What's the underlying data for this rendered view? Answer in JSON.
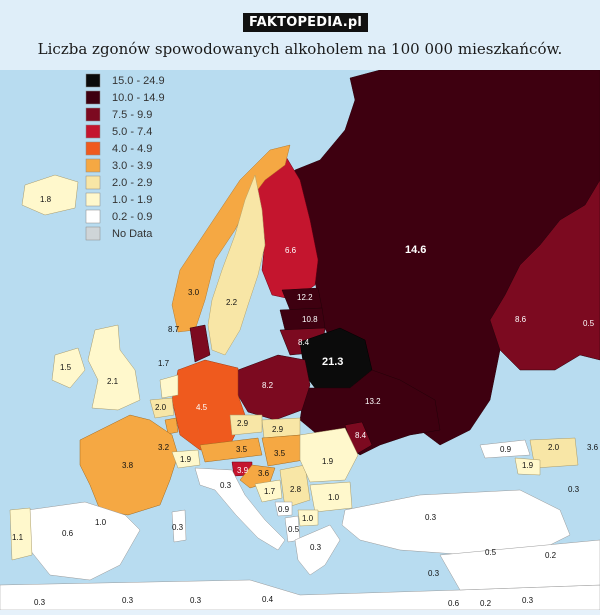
{
  "header": {
    "brand": "FAKTOPEDIA.pl",
    "title": "Liczba zgonów spowodowanych alkoholem na 100 000 mieszkańców."
  },
  "colors": {
    "sea": "#b8dcf0",
    "land_other": "#ffffff",
    "c15_249": "#0b0b0b",
    "c10_149": "#3e0010",
    "c75_99": "#7c0a20",
    "c50_74": "#c4152e",
    "c40_49": "#ef5a1e",
    "c30_39": "#f5a843",
    "c20_29": "#f8e6a6",
    "c10_19": "#fff8cc",
    "c02_09": "#ffffff",
    "nodata": "#cfd5d8"
  },
  "legend": [
    {
      "range": "15.0 - 24.9",
      "color": "#0b0b0b"
    },
    {
      "range": "10.0 - 14.9",
      "color": "#3e0010"
    },
    {
      "range": "7.5 - 9.9",
      "color": "#7c0a20"
    },
    {
      "range": "5.0 - 7.4",
      "color": "#c4152e"
    },
    {
      "range": "4.0 - 4.9",
      "color": "#ef5a1e"
    },
    {
      "range": "3.0 - 3.9",
      "color": "#f5a843"
    },
    {
      "range": "2.0 - 2.9",
      "color": "#f8e6a6"
    },
    {
      "range": "1.0 - 1.9",
      "color": "#fff8cc"
    },
    {
      "range": "0.2 - 0.9",
      "color": "#ffffff"
    },
    {
      "range": "No Data",
      "color": "#cfd5d8"
    }
  ],
  "values": {
    "iceland": "1.8",
    "norway": "3.0",
    "sweden": "2.2",
    "finland": "6.6",
    "russia": "14.6",
    "kazakhstan": "8.6",
    "east_edge": "0.5",
    "estonia": "12.2",
    "latvia": "10.8",
    "lithuania": "8.4",
    "belarus": "21.3",
    "ukraine": "13.2",
    "moldova": "8.4",
    "poland": "8.2",
    "germany": "4.5",
    "denmark": "8.7",
    "netherlands": "1.7",
    "uk": "2.1",
    "ireland": "1.5",
    "belgium": "2.0",
    "luxembourg": "3.2",
    "france": "3.8",
    "switzerland": "1.9",
    "czechia": "2.9",
    "slovakia": "2.9",
    "austria": "3.5",
    "hungary": "3.5",
    "slovenia": "3.9",
    "croatia": "3.6",
    "bosnia": "1.7",
    "serbia": "2.8",
    "romania": "1.9",
    "bulgaria": "1.0",
    "montenegro": "0.9",
    "albania": "0.5",
    "macedonia": "1.0",
    "greece": "0.3",
    "italy": "0.3",
    "spain": "1.0",
    "portugal": "1.1",
    "portugal_south": "0.6",
    "turkey": "0.3",
    "georgia": "0.9",
    "azerbaijan": "2.0",
    "armenia": "1.9",
    "caspian_edge": "3.6",
    "syria": "0.5",
    "iraq": "0.2",
    "cyprus": "0.3",
    "turkey_east": "0.3",
    "africa_w": "0.3",
    "africa_m": "0.3",
    "africa_e": "0.3",
    "malta": "0.4",
    "africa_ne1": "0.6",
    "africa_ne2": "0.2",
    "africa_ne3": "0.3",
    "sardinia": "0.3"
  }
}
